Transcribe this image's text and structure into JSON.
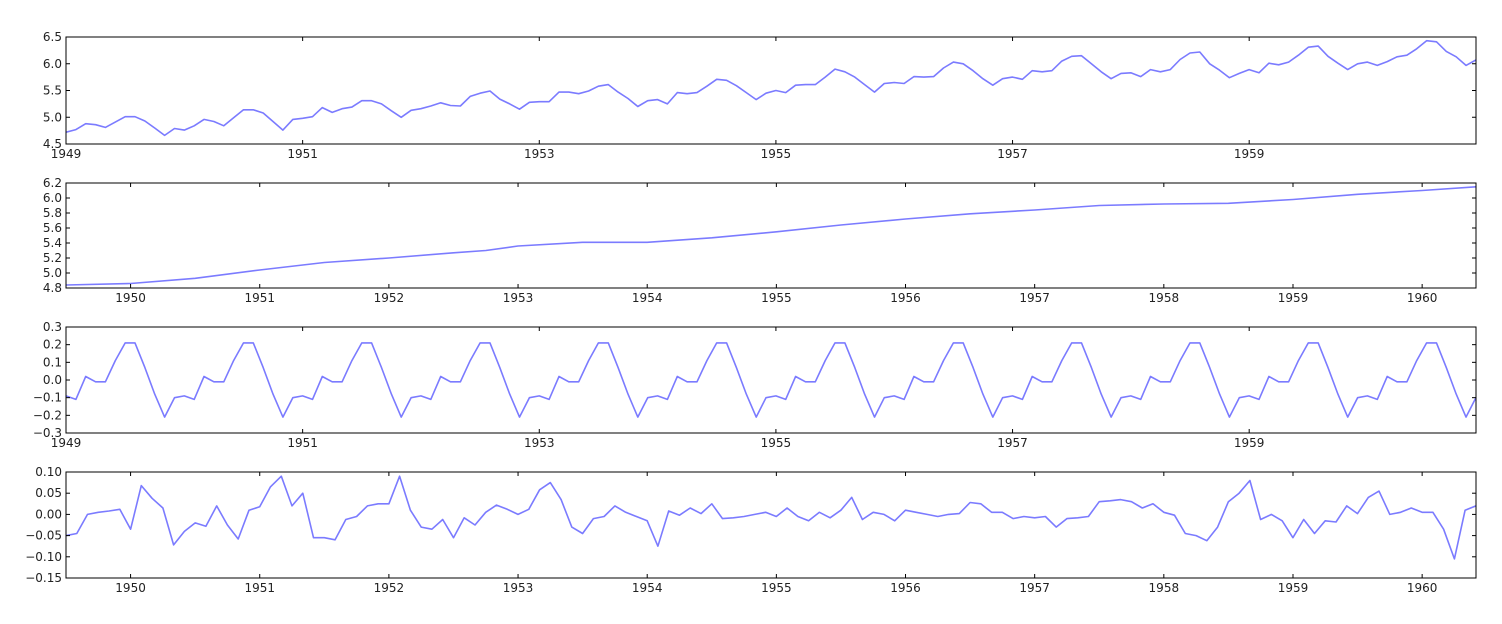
{
  "chart_data": [
    {
      "type": "line",
      "color": "#7b7bff",
      "xlim": [
        1949.0,
        1960.917
      ],
      "ylim": [
        4.5,
        6.5
      ],
      "xticks": [
        1949,
        1951,
        1953,
        1955,
        1957,
        1959
      ],
      "xtick_labels": [
        "1949",
        "1951",
        "1953",
        "1955",
        "1957",
        "1959"
      ],
      "yticks": [
        4.5,
        5.0,
        5.5,
        6.0,
        6.5
      ],
      "ytick_labels": [
        "4.5",
        "5.0",
        "5.5",
        "6.0",
        "6.5"
      ],
      "x_start": 1949.0,
      "x_step": 0.08333,
      "values": [
        4.72,
        4.77,
        4.88,
        4.86,
        4.81,
        4.91,
        5.01,
        5.01,
        4.93,
        4.8,
        4.66,
        4.79,
        4.76,
        4.84,
        4.96,
        4.92,
        4.84,
        4.99,
        5.14,
        5.14,
        5.08,
        4.92,
        4.76,
        4.96,
        4.98,
        5.01,
        5.18,
        5.09,
        5.16,
        5.19,
        5.31,
        5.31,
        5.25,
        5.12,
        5.0,
        5.13,
        5.16,
        5.21,
        5.27,
        5.22,
        5.21,
        5.39,
        5.45,
        5.49,
        5.34,
        5.25,
        5.15,
        5.28,
        5.29,
        5.29,
        5.47,
        5.47,
        5.44,
        5.49,
        5.58,
        5.61,
        5.47,
        5.35,
        5.2,
        5.31,
        5.33,
        5.25,
        5.46,
        5.44,
        5.46,
        5.58,
        5.71,
        5.69,
        5.59,
        5.46,
        5.33,
        5.45,
        5.5,
        5.46,
        5.6,
        5.61,
        5.61,
        5.75,
        5.9,
        5.85,
        5.75,
        5.61,
        5.47,
        5.63,
        5.65,
        5.63,
        5.76,
        5.75,
        5.76,
        5.92,
        6.03,
        6.0,
        5.87,
        5.72,
        5.6,
        5.72,
        5.75,
        5.71,
        5.87,
        5.85,
        5.87,
        6.05,
        6.14,
        6.15,
        6.0,
        5.85,
        5.72,
        5.82,
        5.83,
        5.76,
        5.89,
        5.85,
        5.89,
        6.08,
        6.2,
        6.22,
        6.0,
        5.88,
        5.74,
        5.82,
        5.89,
        5.83,
        6.01,
        5.98,
        6.03,
        6.16,
        6.31,
        6.33,
        6.14,
        6.01,
        5.89,
        6.0,
        6.03,
        5.97,
        6.04,
        6.13,
        6.16,
        6.28,
        6.43,
        6.41,
        6.23,
        6.13,
        5.97,
        6.07
      ]
    },
    {
      "type": "line",
      "color": "#7b7bff",
      "xlim": [
        1949.5,
        1960.417
      ],
      "ylim": [
        4.8,
        6.2
      ],
      "xticks": [
        1950,
        1951,
        1952,
        1953,
        1954,
        1955,
        1956,
        1957,
        1958,
        1959,
        1960
      ],
      "xtick_labels": [
        "1950",
        "1951",
        "1952",
        "1953",
        "1954",
        "1955",
        "1956",
        "1957",
        "1958",
        "1959",
        "1960"
      ],
      "yticks": [
        4.8,
        5.0,
        5.2,
        5.4,
        5.6,
        5.8,
        6.0,
        6.2
      ],
      "ytick_labels": [
        "4.8",
        "5.0",
        "5.2",
        "5.4",
        "5.6",
        "5.8",
        "6.0",
        "6.2"
      ],
      "points": [
        [
          1949.5,
          4.84
        ],
        [
          1950.0,
          4.86
        ],
        [
          1950.5,
          4.93
        ],
        [
          1951.0,
          5.04
        ],
        [
          1951.5,
          5.14
        ],
        [
          1952.0,
          5.2
        ],
        [
          1952.5,
          5.27
        ],
        [
          1952.75,
          5.3
        ],
        [
          1953.0,
          5.36
        ],
        [
          1953.5,
          5.41
        ],
        [
          1954.0,
          5.41
        ],
        [
          1954.5,
          5.47
        ],
        [
          1955.0,
          5.55
        ],
        [
          1955.5,
          5.64
        ],
        [
          1956.0,
          5.72
        ],
        [
          1956.5,
          5.79
        ],
        [
          1957.0,
          5.84
        ],
        [
          1957.5,
          5.9
        ],
        [
          1958.0,
          5.92
        ],
        [
          1958.5,
          5.93
        ],
        [
          1959.0,
          5.98
        ],
        [
          1959.5,
          6.05
        ],
        [
          1960.0,
          6.1
        ],
        [
          1960.417,
          6.15
        ]
      ]
    },
    {
      "type": "line",
      "color": "#7b7bff",
      "xlim": [
        1949.0,
        1960.917
      ],
      "ylim": [
        -0.3,
        0.3
      ],
      "xticks": [
        1949,
        1951,
        1953,
        1955,
        1957,
        1959
      ],
      "xtick_labels": [
        "1949",
        "1951",
        "1953",
        "1955",
        "1957",
        "1959"
      ],
      "yticks": [
        -0.3,
        -0.2,
        -0.1,
        0.0,
        0.1,
        0.2,
        0.3
      ],
      "ytick_labels": [
        "−0.3",
        "−0.2",
        "−0.1",
        "0.0",
        "0.1",
        "0.2",
        "0.3"
      ],
      "x_start": 1949.0,
      "x_step": 0.08333,
      "period_values": [
        -0.09,
        -0.11,
        0.02,
        -0.01,
        -0.01,
        0.11,
        0.21,
        0.21,
        0.07,
        -0.08,
        -0.21,
        -0.1
      ],
      "repeats": 12
    },
    {
      "type": "line",
      "color": "#7b7bff",
      "xlim": [
        1949.5,
        1960.417
      ],
      "ylim": [
        -0.15,
        0.1
      ],
      "xticks": [
        1950,
        1951,
        1952,
        1953,
        1954,
        1955,
        1956,
        1957,
        1958,
        1959,
        1960
      ],
      "xtick_labels": [
        "1950",
        "1951",
        "1952",
        "1953",
        "1954",
        "1955",
        "1956",
        "1957",
        "1958",
        "1959",
        "1960"
      ],
      "yticks": [
        -0.15,
        -0.1,
        -0.05,
        0.0,
        0.05,
        0.1
      ],
      "ytick_labels": [
        "−0.15",
        "−0.10",
        "−0.05",
        "0.00",
        "0.05",
        "0.10"
      ],
      "x_start": 1949.5,
      "x_step": 0.08333,
      "values": [
        -0.05,
        -0.045,
        0.0,
        0.005,
        0.008,
        0.012,
        -0.035,
        0.068,
        0.038,
        0.015,
        -0.072,
        -0.04,
        -0.02,
        -0.028,
        0.02,
        -0.025,
        -0.058,
        0.01,
        0.018,
        0.065,
        0.09,
        0.02,
        0.05,
        -0.055,
        -0.055,
        -0.06,
        -0.012,
        -0.005,
        0.02,
        0.025,
        0.025,
        0.09,
        0.01,
        -0.03,
        -0.035,
        -0.012,
        -0.055,
        -0.008,
        -0.025,
        0.005,
        0.022,
        0.012,
        0.0,
        0.012,
        0.058,
        0.075,
        0.035,
        -0.03,
        -0.045,
        -0.01,
        -0.005,
        0.02,
        0.005,
        -0.005,
        -0.015,
        -0.075,
        0.008,
        -0.002,
        0.015,
        0.002,
        0.025,
        -0.01,
        -0.008,
        -0.005,
        0.0,
        0.005,
        -0.005,
        0.015,
        -0.005,
        -0.015,
        0.005,
        -0.008,
        0.01,
        0.04,
        -0.012,
        0.005,
        0.0,
        -0.015,
        0.01,
        0.005,
        0.0,
        -0.005,
        0.0,
        0.002,
        0.028,
        0.025,
        0.005,
        0.005,
        -0.01,
        -0.005,
        -0.008,
        -0.005,
        -0.03,
        -0.01,
        -0.008,
        -0.005,
        0.03,
        0.032,
        0.035,
        0.03,
        0.015,
        0.025,
        0.005,
        -0.002,
        -0.045,
        -0.05,
        -0.062,
        -0.03,
        0.03,
        0.05,
        0.08,
        -0.012,
        0.0,
        -0.015,
        -0.055,
        -0.012,
        -0.045,
        -0.015,
        -0.018,
        0.02,
        0.002,
        0.04,
        0.055,
        0.0,
        0.005,
        0.015,
        0.005,
        0.005,
        -0.035,
        -0.105,
        0.01,
        0.02,
        0.015
      ]
    }
  ]
}
